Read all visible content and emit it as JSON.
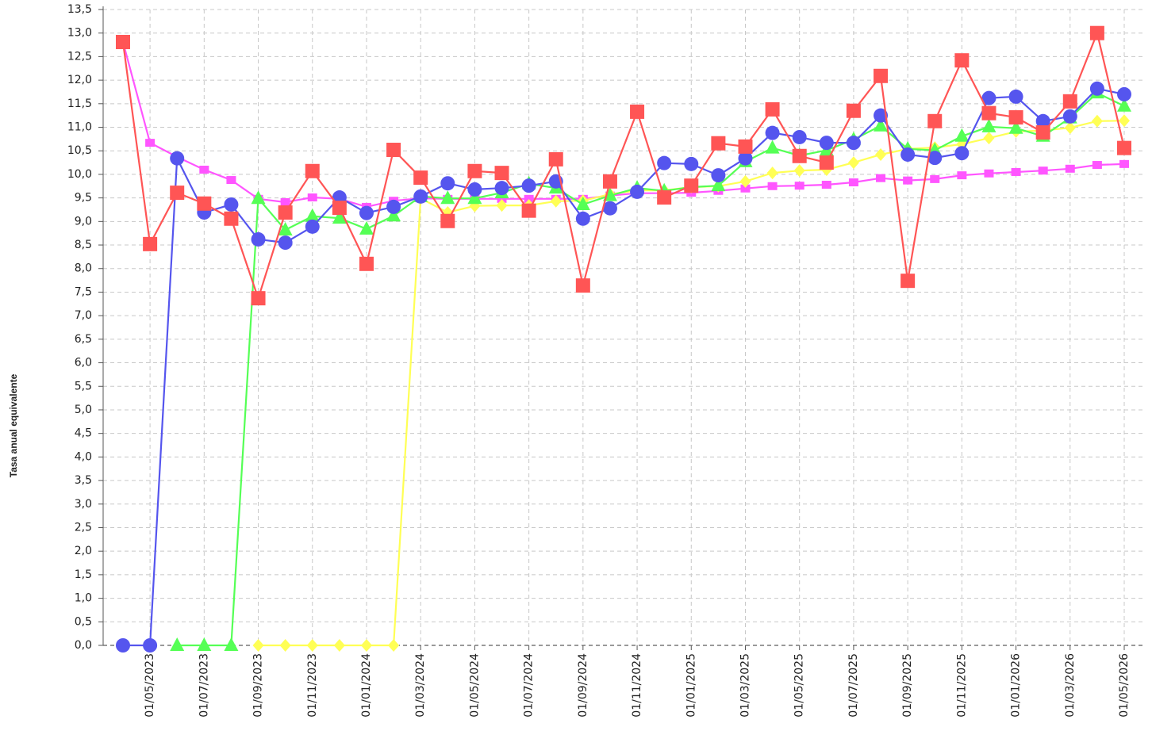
{
  "chart_data": {
    "type": "line",
    "y_label": "Tasa anual equivalente",
    "categories": [
      null,
      "01/05/2023",
      null,
      "01/07/2023",
      null,
      "01/09/2023",
      null,
      "01/11/2023",
      null,
      "01/01/2024",
      null,
      "01/03/2024",
      null,
      "01/05/2024",
      null,
      "01/07/2024",
      null,
      "01/09/2024",
      null,
      "01/11/2024",
      null,
      "01/01/2025",
      null,
      "01/03/2025",
      null,
      "01/05/2025",
      null,
      "01/07/2025",
      null,
      "01/09/2025",
      null,
      "01/11/2025",
      null,
      "01/01/2026",
      null,
      "01/03/2026",
      null,
      "01/05/2026"
    ],
    "series": [
      {
        "color": "#ff5555",
        "marker": "square",
        "values": [
          12.81,
          8.52,
          9.61,
          9.38,
          9.06,
          7.37,
          9.19,
          10.07,
          9.29,
          8.1,
          10.52,
          9.93,
          9.01,
          10.07,
          10.03,
          9.23,
          10.32,
          7.64,
          9.85,
          11.33,
          9.51,
          9.76,
          10.66,
          10.59,
          11.38,
          10.39,
          10.25,
          11.35,
          12.09,
          7.74,
          11.13,
          12.42,
          11.3,
          11.21,
          10.89,
          11.55,
          13.0,
          10.56
        ]
      },
      {
        "color": "#5555ee",
        "marker": "circle",
        "values": [
          0,
          0,
          10.34,
          9.19,
          9.36,
          8.62,
          8.55,
          8.89,
          9.51,
          9.18,
          9.31,
          9.53,
          9.81,
          9.68,
          9.71,
          9.76,
          9.85,
          9.06,
          9.28,
          9.63,
          10.24,
          10.22,
          9.98,
          10.34,
          10.88,
          10.79,
          10.67,
          10.67,
          11.25,
          10.42,
          10.35,
          10.45,
          11.62,
          11.65,
          11.13,
          11.23,
          11.82,
          11.7
        ]
      },
      {
        "color": "#55ff55",
        "marker": "triangle",
        "values": [
          null,
          null,
          0,
          0,
          0,
          9.49,
          8.82,
          9.11,
          9.07,
          8.84,
          9.12,
          9.53,
          9.49,
          9.49,
          9.61,
          9.8,
          9.71,
          9.36,
          9.55,
          9.71,
          9.65,
          9.73,
          9.76,
          10.27,
          10.56,
          10.4,
          10.51,
          10.74,
          11.03,
          10.54,
          10.51,
          10.81,
          11.01,
          10.98,
          10.81,
          11.2,
          11.73,
          11.45
        ]
      },
      {
        "color": "#ffff55",
        "marker": "diamond",
        "values": [
          null,
          null,
          null,
          null,
          null,
          0,
          0,
          0,
          0,
          0,
          0,
          9.49,
          9.19,
          9.33,
          9.34,
          9.34,
          9.43,
          9.44,
          9.58,
          9.66,
          9.66,
          9.73,
          9.75,
          9.85,
          10.03,
          10.08,
          10.1,
          10.25,
          10.42,
          10.54,
          10.57,
          10.64,
          10.77,
          10.91,
          10.93,
          10.99,
          11.13,
          11.14
        ]
      },
      {
        "color": "#ff55ff",
        "marker": "small-square",
        "values": [
          12.81,
          10.67,
          10.37,
          10.1,
          9.88,
          9.48,
          9.41,
          9.51,
          9.48,
          9.31,
          9.44,
          9.49,
          9.48,
          9.48,
          9.48,
          9.48,
          9.48,
          9.48,
          9.55,
          9.6,
          9.6,
          9.61,
          9.65,
          9.7,
          9.75,
          9.76,
          9.78,
          9.83,
          9.92,
          9.87,
          9.9,
          9.98,
          10.02,
          10.05,
          10.08,
          10.12,
          10.2,
          10.22
        ]
      }
    ],
    "ylim": [
      0,
      13.5
    ],
    "yticks": [
      {
        "value": 0,
        "label": "0,0"
      },
      {
        "value": 0.5,
        "label": "0,5"
      },
      {
        "value": 1,
        "label": "1,0"
      },
      {
        "value": 1.5,
        "label": "1,5"
      },
      {
        "value": 2,
        "label": "2,0"
      },
      {
        "value": 2.5,
        "label": "2,5"
      },
      {
        "value": 3,
        "label": "3,0"
      },
      {
        "value": 3.5,
        "label": "3,5"
      },
      {
        "value": 4,
        "label": "4,0"
      },
      {
        "value": 4.5,
        "label": "4,5"
      },
      {
        "value": 5,
        "label": "5,0"
      },
      {
        "value": 5.5,
        "label": "5,5"
      },
      {
        "value": 6,
        "label": "6,0"
      },
      {
        "value": 6.5,
        "label": "6,5"
      },
      {
        "value": 7,
        "label": "7,0"
      },
      {
        "value": 7.5,
        "label": "7,5"
      },
      {
        "value": 8,
        "label": "8,0"
      },
      {
        "value": 8.5,
        "label": "8,5"
      },
      {
        "value": 9,
        "label": "9,0"
      },
      {
        "value": 9.5,
        "label": "9,5"
      },
      {
        "value": 10,
        "label": "10,0"
      },
      {
        "value": 10.5,
        "label": "10,5"
      },
      {
        "value": 11,
        "label": "11,0"
      },
      {
        "value": 11.5,
        "label": "11,5"
      },
      {
        "value": 12,
        "label": "12,0"
      },
      {
        "value": 12.5,
        "label": "12,5"
      },
      {
        "value": 13,
        "label": "13,0"
      },
      {
        "value": 13.5,
        "label": "13,5"
      }
    ],
    "grid": true
  }
}
